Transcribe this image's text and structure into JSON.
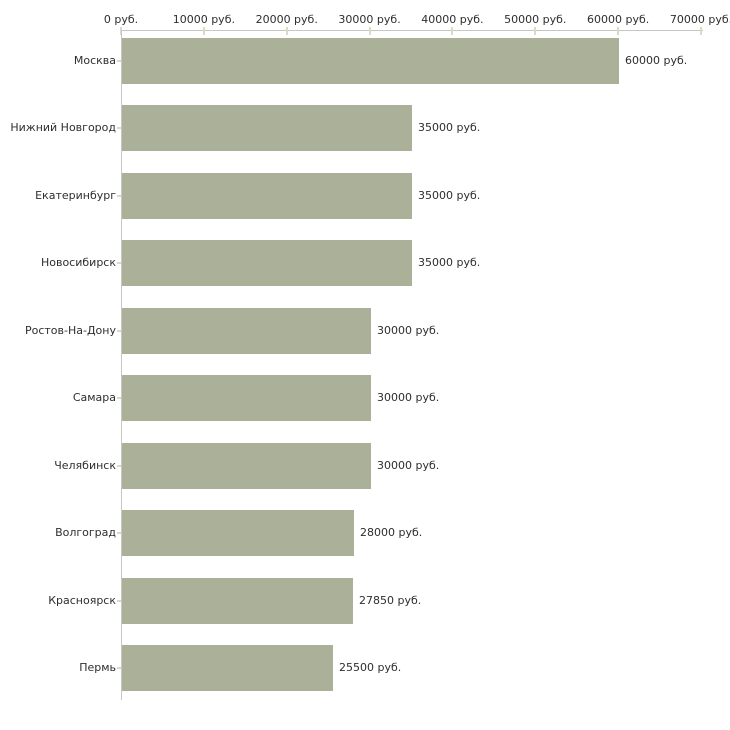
{
  "chart_data": {
    "type": "bar",
    "orientation": "horizontal",
    "title": "",
    "xlabel": "",
    "ylabel": "",
    "grid": false,
    "legend": null,
    "categories": [
      "Москва",
      "Нижний Новгород",
      "Екатеринбург",
      "Новосибирск",
      "Ростов-На-Дону",
      "Самара",
      "Челябинск",
      "Волгоград",
      "Красноярск",
      "Пермь"
    ],
    "values": [
      60000,
      35000,
      35000,
      35000,
      30000,
      30000,
      30000,
      28000,
      27850,
      25500
    ],
    "value_labels": [
      "60000 руб.",
      "35000 руб.",
      "35000 руб.",
      "35000 руб.",
      "30000 руб.",
      "30000 руб.",
      "30000 руб.",
      "28000 руб.",
      "27850 руб.",
      "25500 руб."
    ],
    "x_axis": {
      "position": "top",
      "range": [
        0,
        70000
      ],
      "ticks": [
        0,
        10000,
        20000,
        30000,
        40000,
        50000,
        60000,
        70000
      ],
      "tick_labels": [
        "0 руб.",
        "10000 руб.",
        "20000 руб.",
        "30000 руб.",
        "40000 руб.",
        "50000 руб.",
        "60000 руб.",
        "70000 руб."
      ]
    },
    "colors": {
      "bar": "#abb199",
      "axis": "#c6c6c6",
      "tick": "#d9dbc5",
      "text": "#2e2e2e",
      "background": "#ffffff"
    }
  }
}
